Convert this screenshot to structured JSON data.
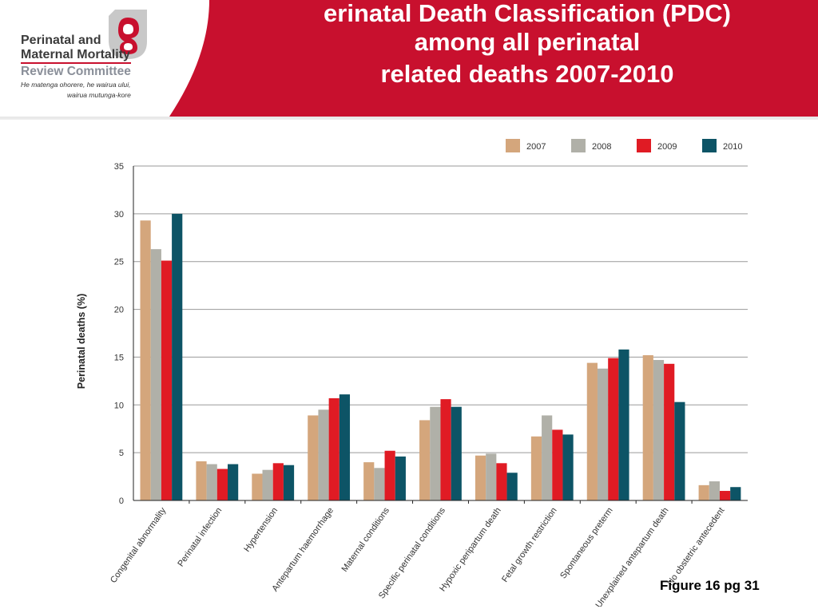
{
  "header": {
    "title_lines": [
      "erinatal Death Classification (PDC)",
      "among all perinatal",
      "related deaths 2007-2010"
    ],
    "banner_color": "#c8102e"
  },
  "logo": {
    "line1": "Perinatal and",
    "line2": "Maternal Mortality",
    "line3": "Review Committee",
    "tagline1": "He matenga ohorere, he wairua ului,",
    "tagline2": "wairua mutunga-kore",
    "icon": "pmmrc-swirl-icon"
  },
  "caption": "Figure 16 pg 31",
  "chart_data": {
    "type": "bar",
    "ylabel": "Perinatal deaths (%)",
    "ylim": [
      0,
      35
    ],
    "yticks": [
      0,
      5,
      10,
      15,
      20,
      25,
      30,
      35
    ],
    "grid": true,
    "legend_position": "top-right",
    "categories": [
      "Congenital abnormality",
      "Perinatal infection",
      "Hypertension",
      "Antepartum haemorrhage",
      "Maternal conditions",
      "Specific perinatal conditions",
      "Hypoxic peripartum death",
      "Fetal growth restriction",
      "Spontaneous preterm",
      "Unexplained antepartum death",
      "No obstetric antecedent"
    ],
    "series": [
      {
        "name": "2007",
        "color": "#d4a67c",
        "values": [
          29.3,
          4.1,
          2.8,
          8.9,
          4.0,
          8.4,
          4.7,
          6.7,
          14.4,
          15.2,
          1.6
        ]
      },
      {
        "name": "2008",
        "color": "#b0b0a8",
        "values": [
          26.3,
          3.8,
          3.2,
          9.5,
          3.4,
          9.8,
          4.9,
          8.9,
          13.8,
          14.7,
          2.0
        ]
      },
      {
        "name": "2009",
        "color": "#e01b24",
        "values": [
          25.1,
          3.3,
          3.9,
          10.7,
          5.2,
          10.6,
          3.9,
          7.4,
          14.9,
          14.3,
          1.0
        ]
      },
      {
        "name": "2010",
        "color": "#0d5466",
        "values": [
          30.0,
          3.8,
          3.7,
          11.1,
          4.6,
          9.8,
          2.9,
          6.9,
          15.8,
          10.3,
          1.4
        ]
      }
    ]
  }
}
